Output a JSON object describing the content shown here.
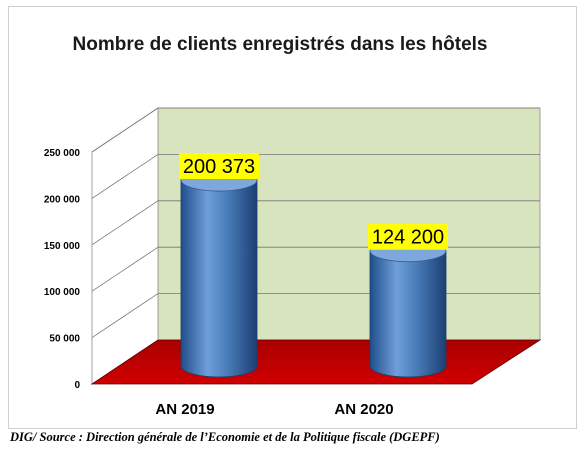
{
  "chart_data": {
    "type": "bar",
    "title": "Nombre de clients enregistrés dans les hôtels",
    "categories": [
      "AN 2019",
      "AN 2020"
    ],
    "values": [
      200373,
      124200
    ],
    "value_labels": [
      "200 373",
      "124 200"
    ],
    "ylim": [
      0,
      250000
    ],
    "yticks": [
      0,
      50000,
      100000,
      150000,
      200000,
      250000
    ],
    "ytick_labels": [
      "0",
      "50 000",
      "100 000",
      "150 000",
      "200 000",
      "250 000"
    ],
    "xlabel": "",
    "ylabel": "",
    "grid": true,
    "style": "3d-cylinder",
    "colors": {
      "bar": "#4a7ebb",
      "back_wall": "#d7e4bd",
      "floor": "#c00000",
      "label_bg": "#ffff00"
    }
  },
  "source": "DIG/ Source : Direction générale de l’Economie et de la Politique fiscale (DGEPF)"
}
